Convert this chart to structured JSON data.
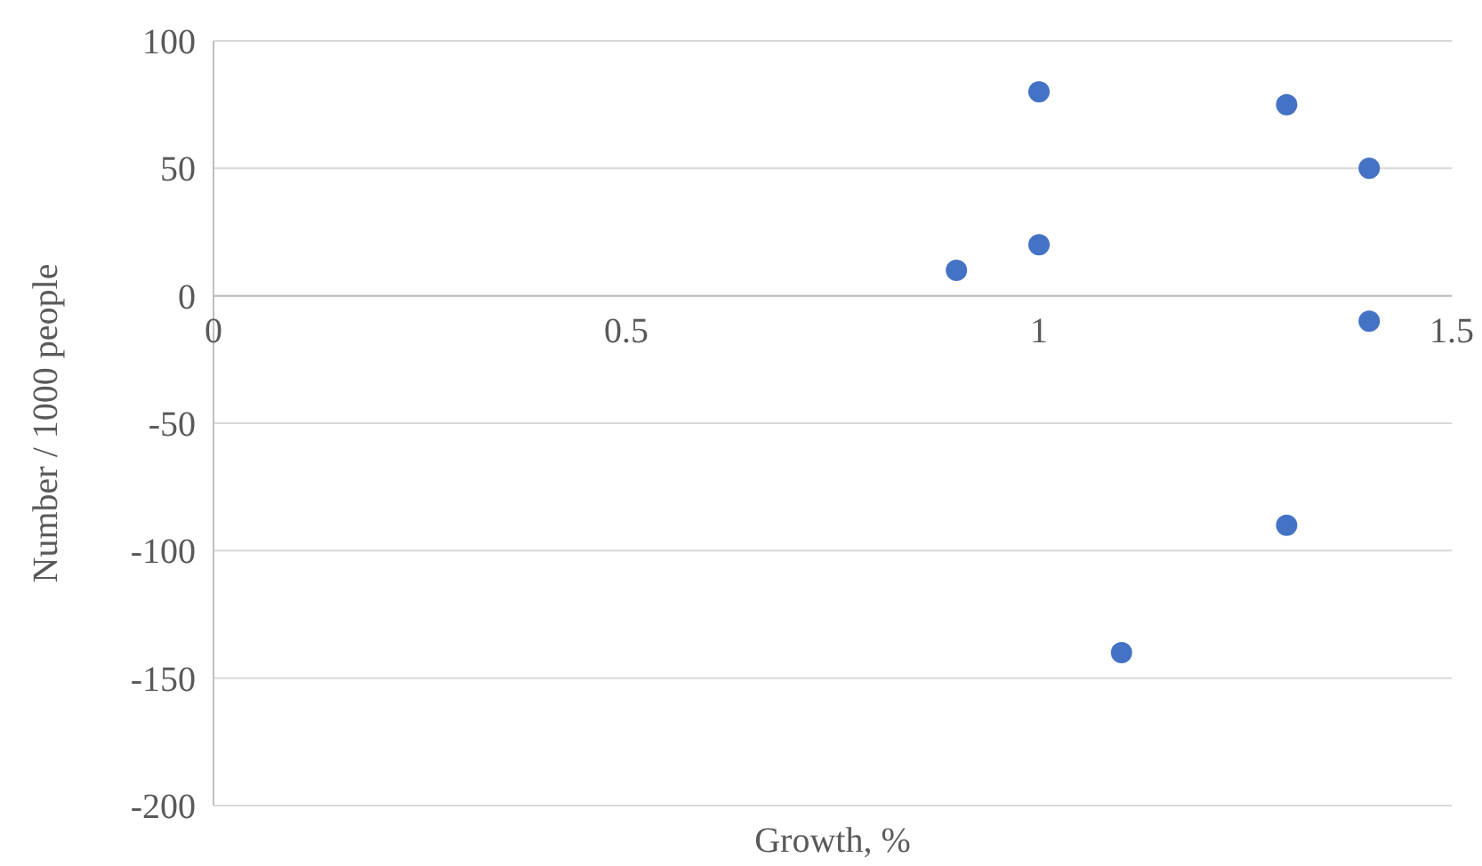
{
  "chart_data": {
    "type": "scatter",
    "xlabel": "Growth, %",
    "ylabel": "Number / 1000 people",
    "x": [
      0.9,
      1.0,
      1.0,
      1.3,
      1.4,
      1.4,
      1.3,
      1.1
    ],
    "values": [
      10,
      80,
      20,
      75,
      50,
      -10,
      -90,
      -140
    ],
    "color": "#4472c4",
    "marker": "circle",
    "xlim": [
      0,
      1.5
    ],
    "xticks": [
      0,
      0.5,
      1,
      1.5
    ],
    "ylim": [
      -200,
      100
    ],
    "yticks": [
      -200,
      -150,
      -100,
      -50,
      0,
      50,
      100
    ],
    "grid": "y"
  }
}
